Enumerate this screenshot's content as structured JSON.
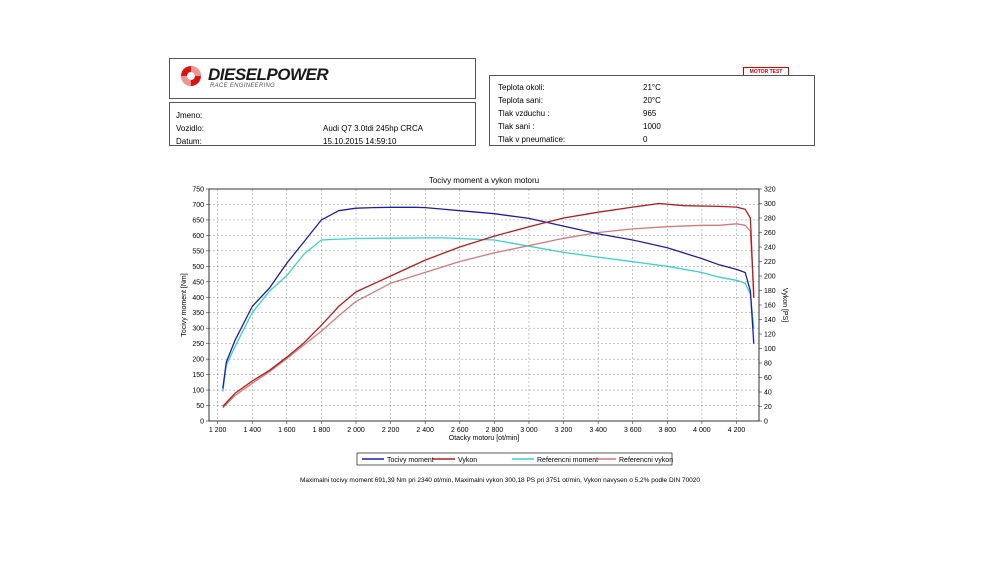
{
  "header": {
    "brand": "DIESELPOWER",
    "brand_sub": "RACE ENGINEERING",
    "badge": "MOTOR TEST"
  },
  "vehicle_info": {
    "jmeno_label": "Jmeno:",
    "jmeno_value": "",
    "vozidlo_label": "Vozidlo:",
    "vozidlo_value": "Audi Q7 3.0tdi 245hp CRCA",
    "datum_label": "Datum:",
    "datum_value": "15.10.2015 14:59:10"
  },
  "conditions": [
    {
      "label": "Teplota okoli:",
      "value": "21°C"
    },
    {
      "label": "Teplota sani:",
      "value": "20°C"
    },
    {
      "label": "Tlak vzduchu :",
      "value": "965"
    },
    {
      "label": "Tlak sani :",
      "value": "1000"
    },
    {
      "label": "Tlak v pneumatice:",
      "value": "0"
    }
  ],
  "colors": {
    "torque": "#1f1fa0",
    "power": "#b01e1e",
    "ref_torque": "#3ad0d0",
    "ref_power": "#d07a7a"
  },
  "chart_data": {
    "type": "line",
    "title": "Tocivy moment a vykon motoru",
    "xlabel": "Otacky motoru [ot/min]",
    "ylabel": "Tocivy moment [Nm]",
    "y2label": "Vykon [PS]",
    "xlim": [
      1150,
      4330
    ],
    "ylim": [
      0,
      750
    ],
    "y2lim": [
      0,
      320
    ],
    "x_ticks": [
      1200,
      1400,
      1600,
      1800,
      2000,
      2200,
      2400,
      2600,
      2800,
      3000,
      3200,
      3400,
      3600,
      3800,
      4000,
      4200
    ],
    "x_tick_labels": [
      "1 200",
      "1 400",
      "1 600",
      "1 800",
      "2 000",
      "2 200",
      "2 400",
      "2 600",
      "2 800",
      "3 000",
      "3 200",
      "3 400",
      "3 600",
      "3 800",
      "4 000",
      "4 200"
    ],
    "y_ticks": [
      0,
      50,
      100,
      150,
      200,
      250,
      300,
      350,
      400,
      450,
      500,
      550,
      600,
      650,
      700,
      750
    ],
    "y2_ticks": [
      0,
      20,
      40,
      60,
      80,
      100,
      120,
      140,
      160,
      180,
      200,
      220,
      240,
      260,
      280,
      300,
      320
    ],
    "grid": true,
    "legend_position": "bottom",
    "series": [
      {
        "name": "Tocivy moment",
        "axis": "left",
        "x": [
          1230,
          1250,
          1300,
          1400,
          1500,
          1600,
          1700,
          1800,
          1900,
          2000,
          2100,
          2200,
          2340,
          2400,
          2500,
          2600,
          2800,
          3000,
          3200,
          3400,
          3600,
          3800,
          4000,
          4100,
          4200,
          4250,
          4280,
          4300
        ],
        "y": [
          105,
          190,
          260,
          370,
          430,
          510,
          580,
          650,
          680,
          688,
          690,
          691,
          691,
          690,
          685,
          680,
          670,
          655,
          630,
          605,
          585,
          560,
          525,
          505,
          490,
          480,
          420,
          250
        ]
      },
      {
        "name": "Vykon",
        "axis": "right",
        "x": [
          1230,
          1300,
          1400,
          1500,
          1600,
          1700,
          1800,
          1900,
          2000,
          2200,
          2400,
          2600,
          2800,
          3000,
          3200,
          3400,
          3600,
          3751,
          3900,
          4100,
          4200,
          4250,
          4280,
          4300
        ],
        "y": [
          20,
          38,
          55,
          70,
          88,
          108,
          132,
          158,
          178,
          200,
          222,
          240,
          255,
          268,
          280,
          288,
          295,
          300,
          297,
          296,
          295,
          292,
          280,
          170
        ]
      },
      {
        "name": "Referencni moment",
        "axis": "left",
        "x": [
          1230,
          1250,
          1300,
          1400,
          1500,
          1600,
          1700,
          1800,
          1900,
          2000,
          2200,
          2400,
          2500,
          2600,
          2800,
          3000,
          3200,
          3400,
          3600,
          3800,
          4000,
          4100,
          4200,
          4250,
          4280,
          4300
        ],
        "y": [
          95,
          180,
          240,
          350,
          420,
          470,
          540,
          585,
          588,
          590,
          591,
          592,
          592,
          590,
          585,
          565,
          545,
          530,
          515,
          500,
          480,
          465,
          455,
          445,
          410,
          300
        ]
      },
      {
        "name": "Referencni vykon",
        "axis": "right",
        "x": [
          1230,
          1300,
          1400,
          1500,
          1600,
          1700,
          1800,
          1900,
          2000,
          2200,
          2400,
          2600,
          2800,
          3000,
          3200,
          3400,
          3600,
          3800,
          4000,
          4100,
          4200,
          4250,
          4280,
          4300
        ],
        "y": [
          18,
          35,
          52,
          68,
          86,
          105,
          124,
          145,
          165,
          190,
          205,
          220,
          232,
          242,
          252,
          260,
          265,
          268,
          270,
          270,
          272,
          270,
          262,
          175
        ]
      }
    ],
    "footer": "Maximalni tocivy moment 691,39 Nm pri 2340 ot/min,  Maximalni vykon 300,18 PS pri 3751 ot/min,  Vykon navysen o 5,2% podle DIN 70020"
  }
}
